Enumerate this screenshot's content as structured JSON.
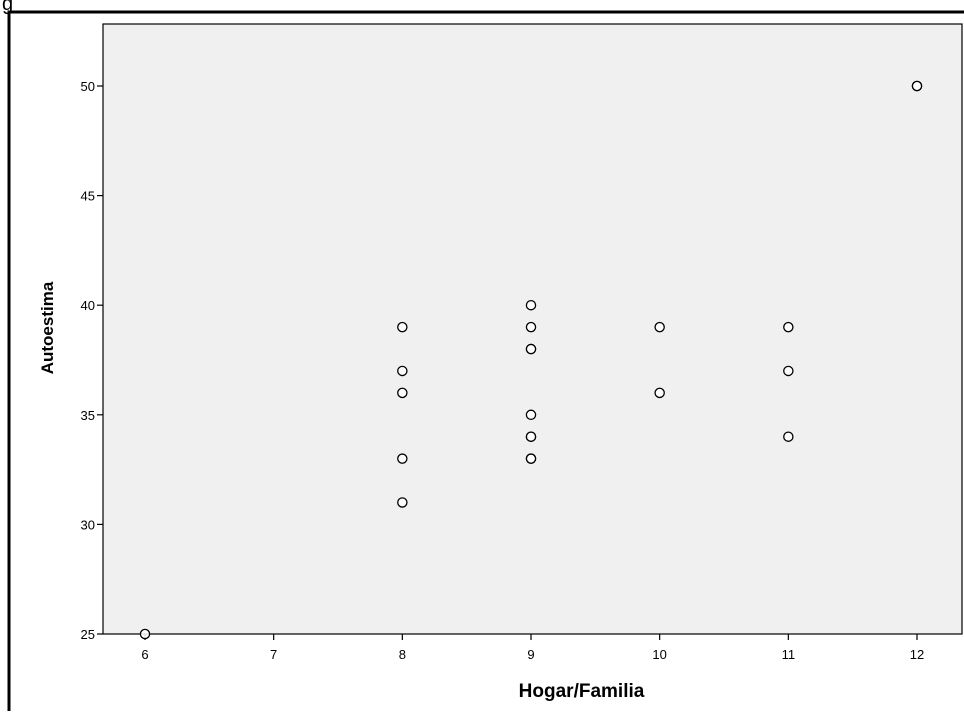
{
  "caption": "g",
  "colors": {
    "plot_background": "#f0f0f0",
    "frame": "#000000",
    "marker_fill": "#ffffff",
    "marker_stroke": "#000000"
  },
  "chart_data": {
    "type": "scatter",
    "xlabel": "Hogar/Familia",
    "ylabel": "Autoestima",
    "xlim": [
      5.7,
      12.3
    ],
    "ylim": [
      25,
      52.8
    ],
    "x_ticks": [
      6,
      7,
      8,
      9,
      10,
      11,
      12
    ],
    "y_ticks": [
      25,
      30,
      35,
      40,
      45,
      50
    ],
    "grid": false,
    "legend": "none",
    "marker": "open-circle",
    "points": [
      {
        "x": 6,
        "y": 25
      },
      {
        "x": 8,
        "y": 39
      },
      {
        "x": 8,
        "y": 37
      },
      {
        "x": 8,
        "y": 36
      },
      {
        "x": 8,
        "y": 33
      },
      {
        "x": 8,
        "y": 31
      },
      {
        "x": 9,
        "y": 40
      },
      {
        "x": 9,
        "y": 39
      },
      {
        "x": 9,
        "y": 38
      },
      {
        "x": 9,
        "y": 38
      },
      {
        "x": 9,
        "y": 35
      },
      {
        "x": 9,
        "y": 34
      },
      {
        "x": 9,
        "y": 34
      },
      {
        "x": 9,
        "y": 33
      },
      {
        "x": 9,
        "y": 33
      },
      {
        "x": 10,
        "y": 39
      },
      {
        "x": 10,
        "y": 36
      },
      {
        "x": 11,
        "y": 39
      },
      {
        "x": 11,
        "y": 37
      },
      {
        "x": 11,
        "y": 34
      },
      {
        "x": 12,
        "y": 50
      },
      {
        "x": 12,
        "y": 50
      }
    ]
  }
}
